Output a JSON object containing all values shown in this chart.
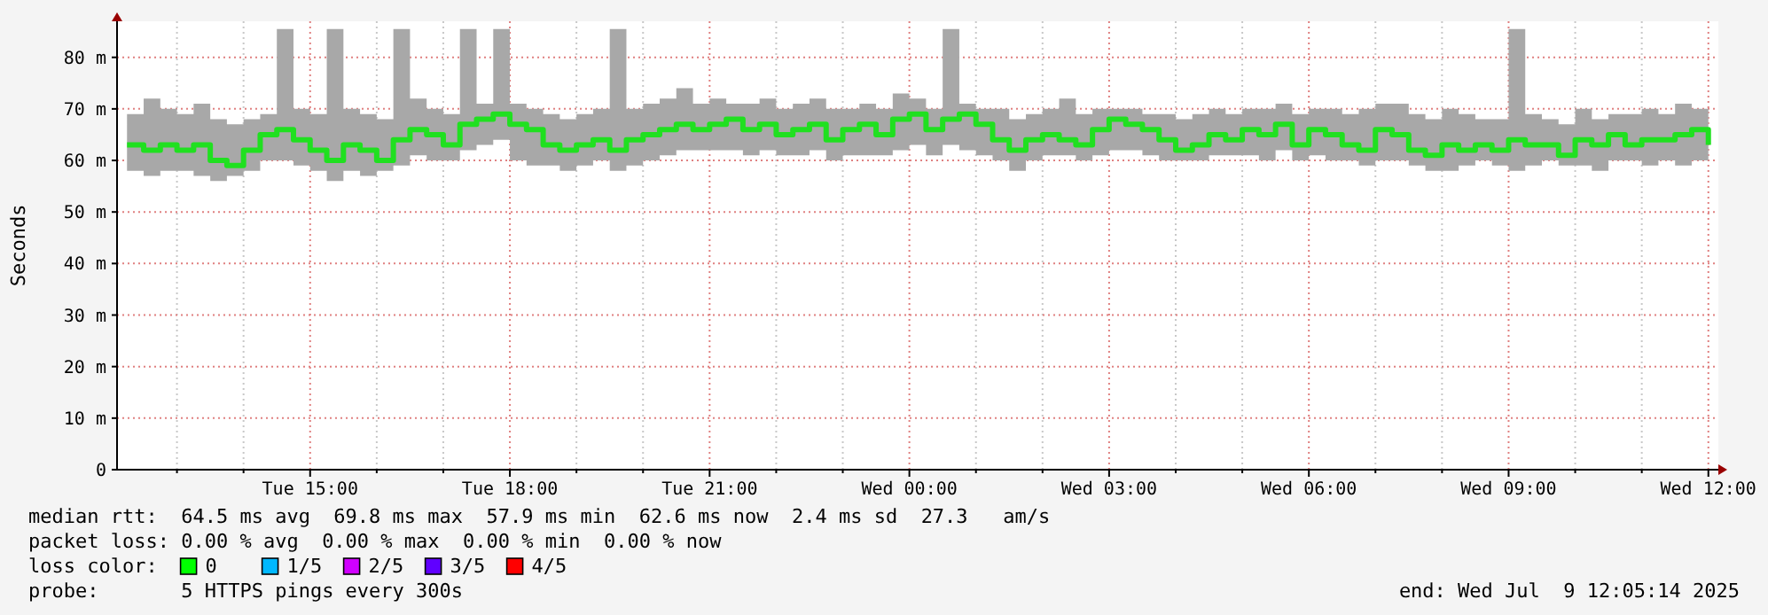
{
  "chart_data": {
    "type": "step",
    "ylabel": "Seconds",
    "xlim": [
      "2025-07-08T12:06",
      "2025-07-09T12:09"
    ],
    "ylim": [
      0,
      87
    ],
    "xticks": [
      {
        "value": "2025-07-08T13:00",
        "label": null
      },
      {
        "value": "2025-07-08T14:00",
        "label": null
      },
      {
        "value": "2025-07-08T15:00",
        "label": "Tue 15:00"
      },
      {
        "value": "2025-07-08T16:00",
        "label": null
      },
      {
        "value": "2025-07-08T17:00",
        "label": null
      },
      {
        "value": "2025-07-08T18:00",
        "label": "Tue 18:00"
      },
      {
        "value": "2025-07-08T19:00",
        "label": null
      },
      {
        "value": "2025-07-08T20:00",
        "label": null
      },
      {
        "value": "2025-07-08T21:00",
        "label": "Tue 21:00"
      },
      {
        "value": "2025-07-08T22:00",
        "label": null
      },
      {
        "value": "2025-07-08T23:00",
        "label": null
      },
      {
        "value": "2025-07-09T00:00",
        "label": "Wed 00:00"
      },
      {
        "value": "2025-07-09T01:00",
        "label": null
      },
      {
        "value": "2025-07-09T02:00",
        "label": null
      },
      {
        "value": "2025-07-09T03:00",
        "label": "Wed 03:00"
      },
      {
        "value": "2025-07-09T04:00",
        "label": null
      },
      {
        "value": "2025-07-09T05:00",
        "label": null
      },
      {
        "value": "2025-07-09T06:00",
        "label": "Wed 06:00"
      },
      {
        "value": "2025-07-09T07:00",
        "label": null
      },
      {
        "value": "2025-07-09T08:00",
        "label": null
      },
      {
        "value": "2025-07-09T09:00",
        "label": "Wed 09:00"
      },
      {
        "value": "2025-07-09T10:00",
        "label": null
      },
      {
        "value": "2025-07-09T11:00",
        "label": null
      },
      {
        "value": "2025-07-09T12:00",
        "label": "Wed 12:00"
      }
    ],
    "yticks": [
      0,
      {
        "value": 10,
        "label": "10 m"
      },
      {
        "value": 20,
        "label": "20 m"
      },
      {
        "value": 30,
        "label": "30 m"
      },
      {
        "value": 40,
        "label": "40 m"
      },
      {
        "value": 50,
        "label": "50 m"
      },
      {
        "value": 60,
        "label": "60 m"
      },
      {
        "value": 70,
        "label": "70 m"
      },
      {
        "value": 80,
        "label": "80 m"
      }
    ],
    "grid": true,
    "x": [
      "2025-07-08T12:15",
      "2025-07-08T12:30",
      "2025-07-08T12:45",
      "2025-07-08T13:00",
      "2025-07-08T13:15",
      "2025-07-08T13:30",
      "2025-07-08T13:45",
      "2025-07-08T14:00",
      "2025-07-08T14:15",
      "2025-07-08T14:30",
      "2025-07-08T14:45",
      "2025-07-08T15:00",
      "2025-07-08T15:15",
      "2025-07-08T15:30",
      "2025-07-08T15:45",
      "2025-07-08T16:00",
      "2025-07-08T16:15",
      "2025-07-08T16:30",
      "2025-07-08T16:45",
      "2025-07-08T17:00",
      "2025-07-08T17:15",
      "2025-07-08T17:30",
      "2025-07-08T17:45",
      "2025-07-08T18:00",
      "2025-07-08T18:15",
      "2025-07-08T18:30",
      "2025-07-08T18:45",
      "2025-07-08T19:00",
      "2025-07-08T19:15",
      "2025-07-08T19:30",
      "2025-07-08T19:45",
      "2025-07-08T20:00",
      "2025-07-08T20:15",
      "2025-07-08T20:30",
      "2025-07-08T20:45",
      "2025-07-08T21:00",
      "2025-07-08T21:15",
      "2025-07-08T21:30",
      "2025-07-08T21:45",
      "2025-07-08T22:00",
      "2025-07-08T22:15",
      "2025-07-08T22:30",
      "2025-07-08T22:45",
      "2025-07-08T23:00",
      "2025-07-08T23:15",
      "2025-07-08T23:30",
      "2025-07-08T23:45",
      "2025-07-09T00:00",
      "2025-07-09T00:15",
      "2025-07-09T00:30",
      "2025-07-09T00:45",
      "2025-07-09T01:00",
      "2025-07-09T01:15",
      "2025-07-09T01:30",
      "2025-07-09T01:45",
      "2025-07-09T02:00",
      "2025-07-09T02:15",
      "2025-07-09T02:30",
      "2025-07-09T02:45",
      "2025-07-09T03:00",
      "2025-07-09T03:15",
      "2025-07-09T03:30",
      "2025-07-09T03:45",
      "2025-07-09T04:00",
      "2025-07-09T04:15",
      "2025-07-09T04:30",
      "2025-07-09T04:45",
      "2025-07-09T05:00",
      "2025-07-09T05:15",
      "2025-07-09T05:30",
      "2025-07-09T05:45",
      "2025-07-09T06:00",
      "2025-07-09T06:15",
      "2025-07-09T06:30",
      "2025-07-09T06:45",
      "2025-07-09T07:00",
      "2025-07-09T07:15",
      "2025-07-09T07:30",
      "2025-07-09T07:45",
      "2025-07-09T08:00",
      "2025-07-09T08:15",
      "2025-07-09T08:30",
      "2025-07-09T08:45",
      "2025-07-09T09:00",
      "2025-07-09T09:15",
      "2025-07-09T09:30",
      "2025-07-09T09:45",
      "2025-07-09T10:00",
      "2025-07-09T10:15",
      "2025-07-09T10:30",
      "2025-07-09T10:45",
      "2025-07-09T11:00",
      "2025-07-09T11:15",
      "2025-07-09T11:30",
      "2025-07-09T11:45",
      "2025-07-09T12:00"
    ],
    "series": [
      {
        "color": "#20e020",
        "values": [
          63,
          62,
          63,
          62,
          63,
          60,
          59,
          62,
          65,
          66,
          64,
          62,
          60,
          63,
          62,
          60,
          64,
          66,
          65,
          63,
          67,
          68,
          69,
          67,
          66,
          63,
          62,
          63,
          64,
          62,
          64,
          65,
          66,
          67,
          66,
          67,
          68,
          66,
          67,
          65,
          66,
          67,
          64,
          66,
          67,
          65,
          68,
          69,
          66,
          68,
          69,
          67,
          64,
          62,
          64,
          65,
          64,
          63,
          66,
          68,
          67,
          66,
          64,
          62,
          63,
          65,
          64,
          66,
          65,
          67,
          63,
          66,
          65,
          63,
          62,
          66,
          65,
          62,
          61,
          63,
          62,
          63,
          62,
          64,
          63,
          63,
          61,
          64,
          63,
          65,
          63,
          64,
          64,
          65,
          66,
          63
        ],
        "lower": [
          58,
          57,
          58,
          58,
          57,
          56,
          57,
          58,
          60,
          60,
          59,
          58,
          56,
          58,
          57,
          58,
          59,
          61,
          60,
          60,
          62,
          63,
          64,
          60,
          59,
          59,
          58,
          59,
          60,
          58,
          59,
          60,
          61,
          62,
          62,
          62,
          62,
          61,
          62,
          61,
          61,
          62,
          60,
          61,
          61,
          61,
          62,
          63,
          61,
          63,
          62,
          61,
          60,
          58,
          60,
          61,
          61,
          60,
          61,
          62,
          62,
          61,
          60,
          60,
          60,
          61,
          61,
          61,
          60,
          62,
          60,
          61,
          60,
          60,
          59,
          60,
          60,
          59,
          58,
          58,
          59,
          60,
          59,
          58,
          59,
          60,
          59,
          59,
          58,
          60,
          60,
          59,
          60,
          59,
          60,
          59
        ],
        "upper": [
          69,
          72,
          70,
          69,
          71,
          68,
          67,
          68,
          69,
          85.5,
          70,
          69,
          85.5,
          70,
          69,
          68,
          85.5,
          72,
          70,
          69,
          85.5,
          71,
          85.5,
          71,
          70,
          69,
          68,
          69,
          70,
          85.5,
          70,
          71,
          72,
          74,
          71,
          72,
          71,
          71,
          72,
          70,
          71,
          72,
          70,
          70,
          71,
          70,
          73,
          72,
          70,
          85.5,
          71,
          70,
          70,
          68,
          69,
          70,
          72,
          69,
          70,
          70,
          70,
          69,
          69,
          68,
          69,
          70,
          69,
          70,
          70,
          71,
          69,
          70,
          70,
          69,
          70,
          71,
          71,
          69,
          68,
          70,
          69,
          68,
          68,
          85.5,
          69,
          68,
          67,
          70,
          68,
          69,
          69,
          70,
          69,
          71,
          70,
          69
        ]
      }
    ],
    "annotations": [
      "median rtt:  64.5 ms avg  69.8 ms max  57.9 ms min  62.6 ms now  2.4 ms sd  27.3   am/s",
      "packet loss: 0.00 % avg  0.00 % max  0.00 % min  0.00 % now",
      "loss color:",
      "0",
      "1/5",
      "2/5",
      "3/5",
      "4/5",
      "probe:       5 HTTPS pings every 300s",
      "end: Wed Jul  9 12:05:14 2025"
    ]
  }
}
